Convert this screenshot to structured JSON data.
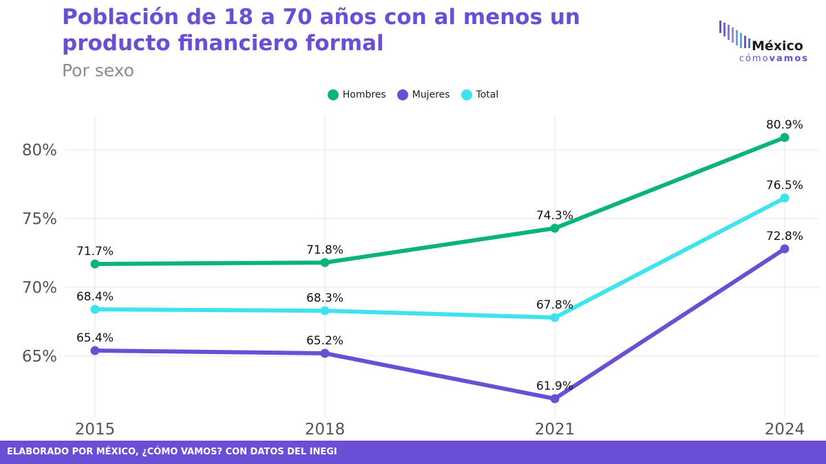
{
  "header": {
    "title": "Población de 18 a 70 años con al menos un producto financiero formal",
    "subtitle": "Por sexo"
  },
  "logo": {
    "name": "México",
    "tag_light": "cómo",
    "tag_bold": "vamos"
  },
  "footer": {
    "text": "ELABORADO POR MÉXICO, ¿CÓMO VAMOS? CON DATOS DEL INEGI"
  },
  "colors": {
    "accent": "#6a4fd6",
    "hombres": "#0bb37c",
    "mujeres": "#6a4fd6",
    "total": "#3ee3ef"
  },
  "chart_data": {
    "type": "line",
    "title": "Población de 18 a 70 años con al menos un producto financiero formal",
    "subtitle": "Por sexo",
    "x": [
      "2015",
      "2018",
      "2021",
      "2024"
    ],
    "yticks": [
      "65%",
      "70%",
      "75%",
      "80%"
    ],
    "ylim": [
      60.5,
      82.5
    ],
    "grid": true,
    "legend_position": "top",
    "series": [
      {
        "name": "Hombres",
        "color": "#0bb37c",
        "values": [
          71.7,
          71.8,
          74.3,
          80.9
        ],
        "labels": [
          "71.7%",
          "71.8%",
          "74.3%",
          "80.9%"
        ]
      },
      {
        "name": "Mujeres",
        "color": "#6a4fd6",
        "values": [
          65.4,
          65.2,
          61.9,
          72.8
        ],
        "labels": [
          "65.4%",
          "65.2%",
          "61.9%",
          "72.8%"
        ]
      },
      {
        "name": "Total",
        "color": "#3ee3ef",
        "values": [
          68.4,
          68.3,
          67.8,
          76.5
        ],
        "labels": [
          "68.4%",
          "68.3%",
          "67.8%",
          "76.5%"
        ]
      }
    ]
  }
}
